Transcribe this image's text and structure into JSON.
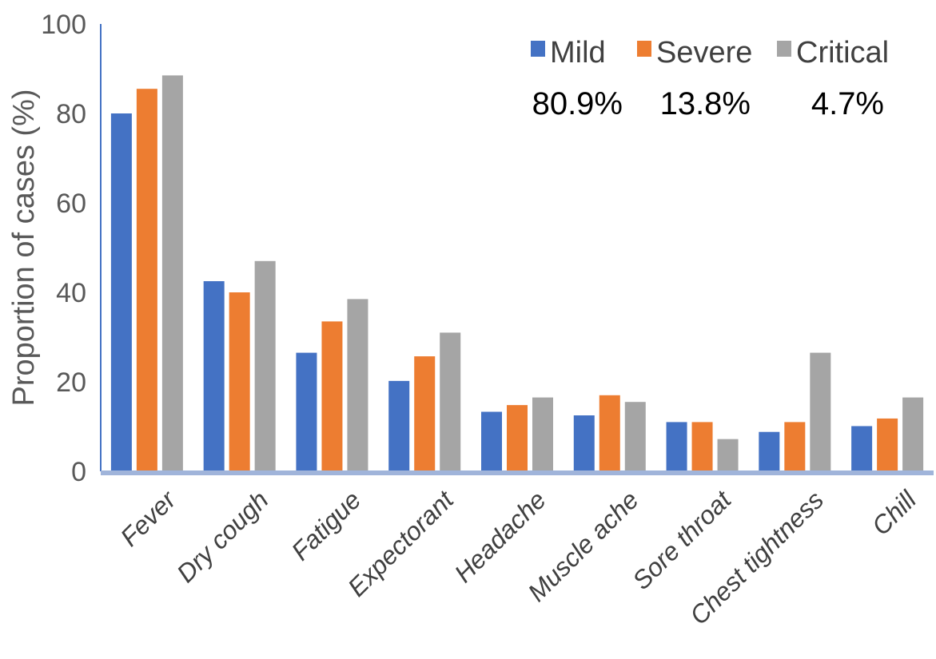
{
  "chart_data": {
    "type": "bar",
    "categories": [
      "Fever",
      "Dry cough",
      "Fatigue",
      "Expectorant",
      "Headache",
      "Muscle ache",
      "Sore throat",
      "Chest tightness",
      "Chill"
    ],
    "series": [
      {
        "name": "Mild",
        "color": "#4472C4",
        "values": [
          80,
          42.5,
          26.5,
          20.2,
          13.3,
          12.5,
          11,
          8.8,
          10.1
        ]
      },
      {
        "name": "Severe",
        "color": "#ED7D31",
        "values": [
          85.5,
          40,
          33.5,
          25.7,
          14.8,
          17,
          11,
          11,
          11.8
        ]
      },
      {
        "name": "Critical",
        "color": "#A5A5A5",
        "values": [
          88.5,
          47,
          38.5,
          31,
          16.5,
          15.5,
          7.2,
          26.5,
          16.5
        ]
      }
    ],
    "annotations": [
      "80.9%",
      "13.8%",
      "4.7%"
    ],
    "title": "",
    "xlabel": "",
    "ylabel": "Proportion of cases (%)",
    "ylim": [
      0,
      100
    ],
    "yticks": [
      "0",
      "20",
      "40",
      "60",
      "80",
      "100"
    ],
    "grid": false,
    "legend_position": "top-right"
  }
}
